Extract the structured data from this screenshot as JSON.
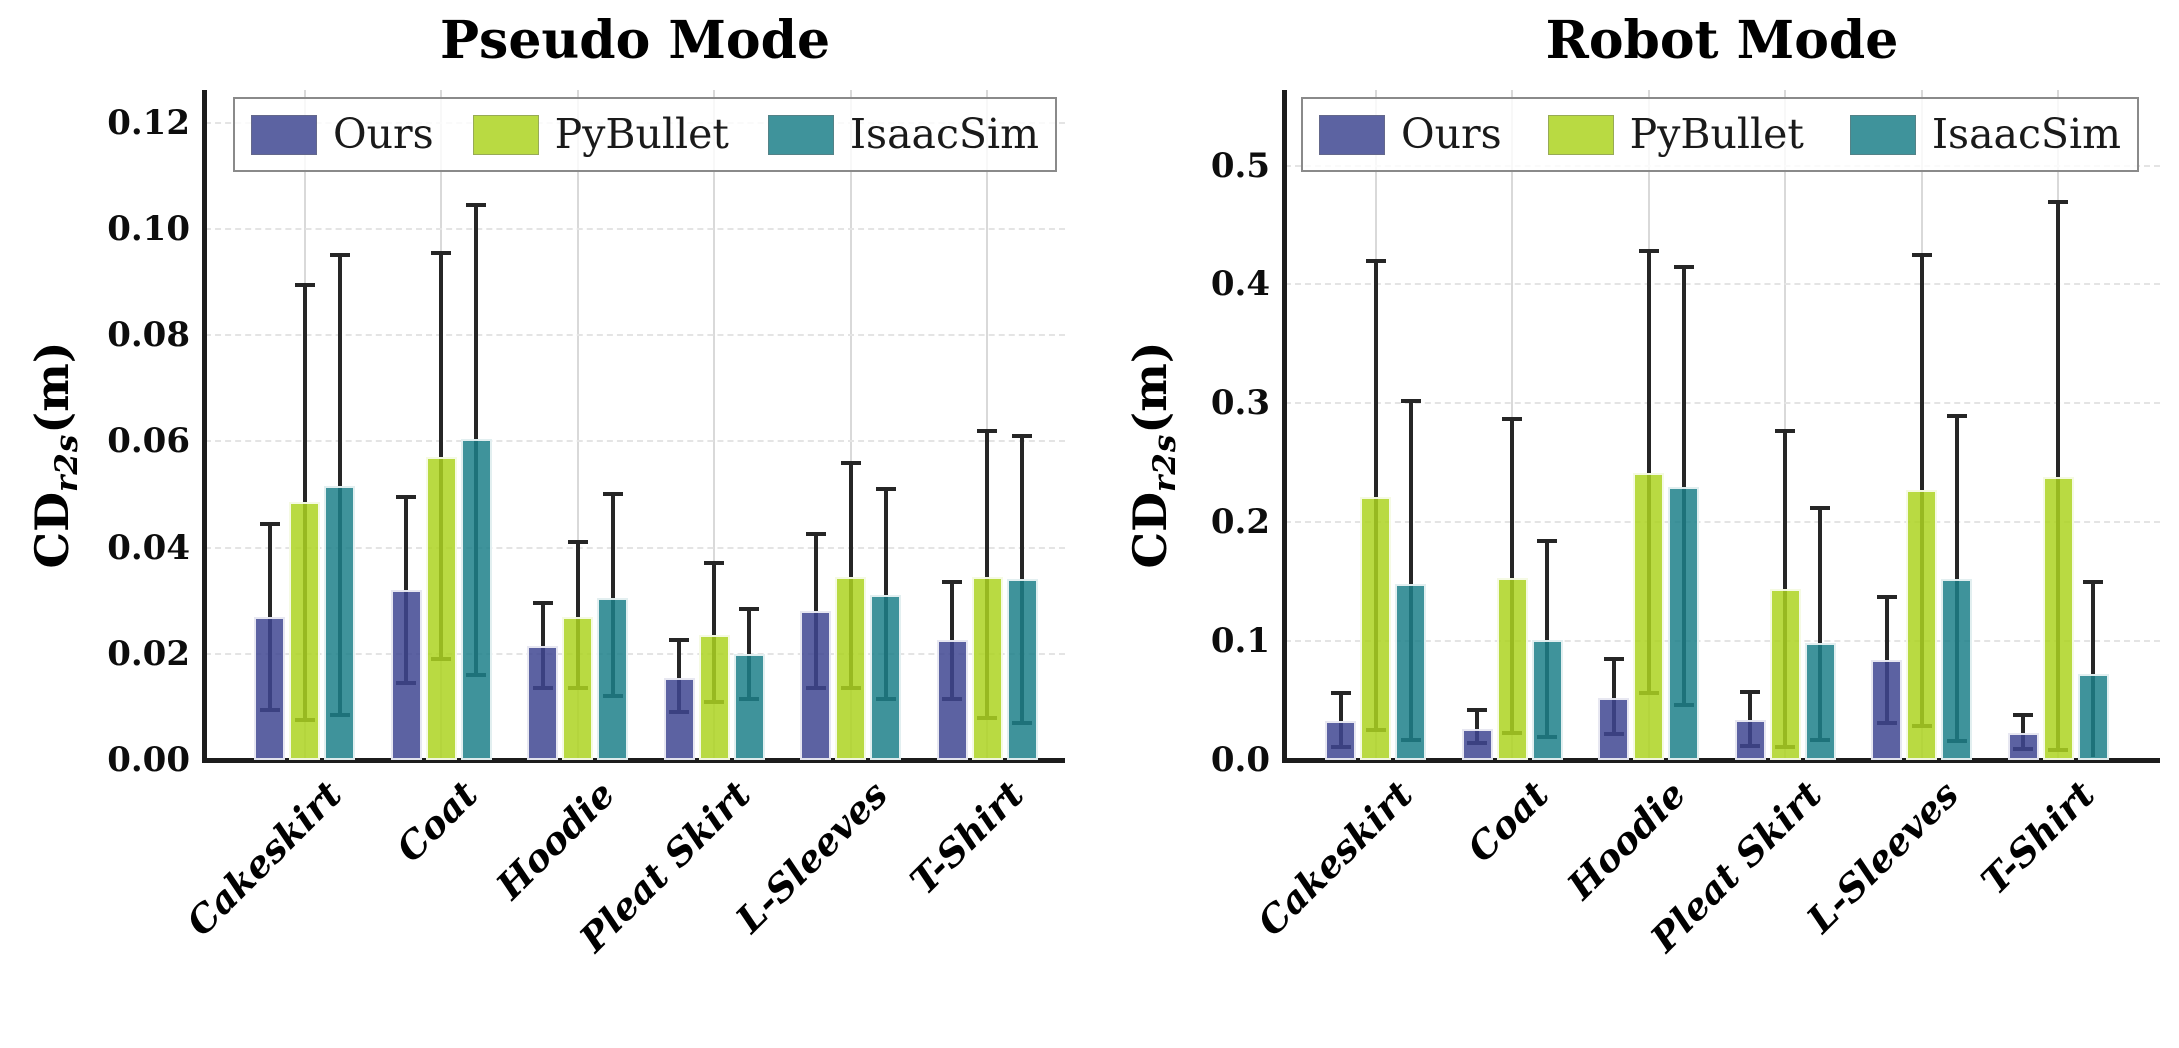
{
  "figure": {
    "ylabel_main": "CD",
    "ylabel_sub": "r2s",
    "ylabel_unit": "(m)",
    "colors": {
      "ours": "#5c63a2",
      "pybullet": "#b9da42",
      "isaacsim": "#3f939b",
      "error_line": "#262626",
      "spine": "#1c1c1c",
      "grid_horizontal": "#e4e4e4",
      "grid_vertical": "#d9d9d9",
      "legend_border": "#8a8a8a"
    }
  },
  "chart_data": [
    {
      "type": "bar",
      "title": "Pseudo Mode",
      "ylabel": "CD_r2s(m)",
      "ylim": [
        0,
        0.126
      ],
      "yticks": [
        0,
        0.02,
        0.04,
        0.06,
        0.08,
        0.1,
        0.12
      ],
      "ytick_labels": [
        "0.00",
        "0.02",
        "0.04",
        "0.06",
        "0.08",
        "0.10",
        "0.12"
      ],
      "categories": [
        "Cakeskirt",
        "Coat",
        "Hoodie",
        "Pleat Skirt",
        "L-Sleeves",
        "T-Shirt"
      ],
      "grid": "horizontal dashed + vertical line per category",
      "legend_position": "upper center, 3 columns, expanded",
      "series": [
        {
          "name": "Ours",
          "color": "#5c63a2",
          "values": [
            0.027,
            0.032,
            0.0215,
            0.0155,
            0.028,
            0.0225
          ],
          "err_low": [
            0.0095,
            0.0145,
            0.0135,
            0.009,
            0.0135,
            0.0115
          ],
          "err_high": [
            0.0445,
            0.0495,
            0.0295,
            0.0225,
            0.0425,
            0.0335
          ]
        },
        {
          "name": "PyBullet",
          "color": "#b9da42",
          "values": [
            0.0485,
            0.057,
            0.027,
            0.0235,
            0.0345,
            0.0345
          ],
          "err_low": [
            0.0075,
            0.019,
            0.0135,
            0.011,
            0.0135,
            0.008
          ],
          "err_high": [
            0.0895,
            0.0955,
            0.041,
            0.037,
            0.056,
            0.062
          ]
        },
        {
          "name": "IsaacSim",
          "color": "#3f939b",
          "values": [
            0.0515,
            0.0605,
            0.0305,
            0.02,
            0.031,
            0.034
          ],
          "err_low": [
            0.0085,
            0.016,
            0.012,
            0.0115,
            0.0115,
            0.007
          ],
          "err_high": [
            0.095,
            0.1045,
            0.05,
            0.0285,
            0.051,
            0.061
          ]
        }
      ]
    },
    {
      "type": "bar",
      "title": "Robot Mode",
      "ylabel": "CD_r2s(m)",
      "ylim": [
        0,
        0.5635
      ],
      "yticks": [
        0,
        0.1,
        0.2,
        0.3,
        0.4,
        0.5
      ],
      "ytick_labels": [
        "0.0",
        "0.1",
        "0.2",
        "0.3",
        "0.4",
        "0.5"
      ],
      "categories": [
        "Cakeskirt",
        "Coat",
        "Hoodie",
        "Pleat Skirt",
        "L-Sleeves",
        "T-Shirt"
      ],
      "grid": "horizontal dashed + vertical line per category",
      "legend_position": "upper center, 3 columns, expanded",
      "series": [
        {
          "name": "Ours",
          "color": "#5c63a2",
          "values": [
            0.033,
            0.026,
            0.052,
            0.034,
            0.084,
            0.023
          ],
          "err_low": [
            0.011,
            0.014,
            0.022,
            0.012,
            0.031,
            0.009
          ],
          "err_high": [
            0.056,
            0.042,
            0.085,
            0.057,
            0.137,
            0.038
          ]
        },
        {
          "name": "PyBullet",
          "color": "#b9da42",
          "values": [
            0.221,
            0.153,
            0.241,
            0.144,
            0.227,
            0.238
          ],
          "err_low": [
            0.025,
            0.023,
            0.056,
            0.011,
            0.029,
            0.008
          ],
          "err_high": [
            0.42,
            0.287,
            0.428,
            0.277,
            0.425,
            0.469
          ]
        },
        {
          "name": "IsaacSim",
          "color": "#3f939b",
          "values": [
            0.148,
            0.101,
            0.23,
            0.098,
            0.152,
            0.072
          ],
          "err_low": [
            0.017,
            0.019,
            0.046,
            0.017,
            0.016,
            null
          ],
          "err_high": [
            0.302,
            0.184,
            0.415,
            0.212,
            0.289,
            0.15
          ]
        }
      ]
    }
  ]
}
